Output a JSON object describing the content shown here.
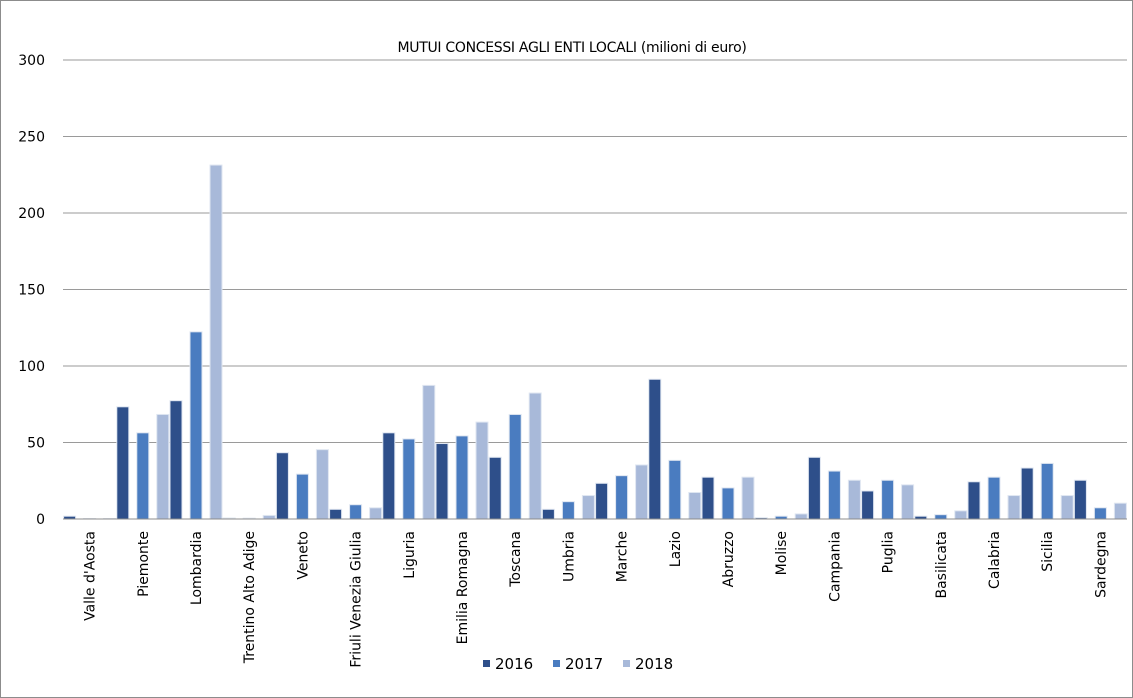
{
  "chart_data": {
    "type": "bar",
    "title": "MUTUI CONCESSI AGLI ENTI LOCALI  (milioni di euro)",
    "xlabel": "",
    "ylabel": "",
    "ylim": [
      0,
      300
    ],
    "yticks": [
      0,
      50,
      100,
      150,
      200,
      250,
      300
    ],
    "grid": true,
    "legend_position": "bottom",
    "categories": [
      "Valle d'Aosta",
      "Piemonte",
      "Lombardia",
      "Trentino Alto Adige",
      "Veneto",
      "Friuli Venezia Giulia",
      "Liguria",
      "Emilia Romagna",
      "Toscana",
      "Umbria",
      "Marche",
      "Lazio",
      "Abruzzo",
      "Molise",
      "Campania",
      "Puglia",
      "Basilicata",
      "Calabria",
      "Sicilia",
      "Sardegna"
    ],
    "series": [
      {
        "name": "2016",
        "color": "#2e4f8a",
        "values": [
          1.5,
          73,
          77,
          0.3,
          43,
          6,
          56,
          49,
          40,
          6,
          23,
          91,
          27,
          0.5,
          40,
          18,
          1.5,
          24,
          33,
          25
        ]
      },
      {
        "name": "2017",
        "color": "#4a7cc0",
        "values": [
          0,
          56,
          122,
          0.2,
          29,
          9,
          52,
          54,
          68,
          11,
          28,
          38,
          20,
          1.5,
          31,
          25,
          2.5,
          27,
          36,
          7
        ]
      },
      {
        "name": "2018",
        "color": "#a8b9d9",
        "values": [
          0,
          68,
          231,
          2,
          45,
          7,
          87,
          63,
          82,
          15,
          35,
          17,
          27,
          3,
          25,
          22,
          5,
          15,
          15,
          10
        ]
      }
    ]
  }
}
